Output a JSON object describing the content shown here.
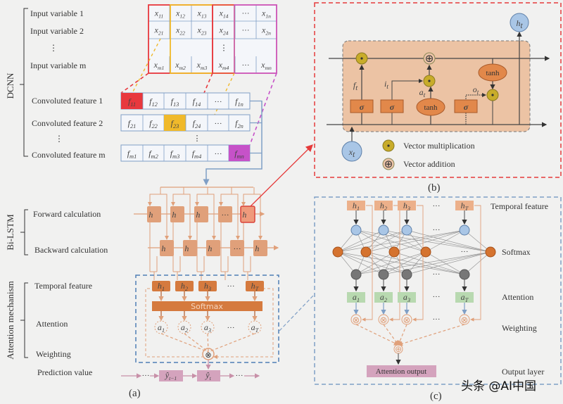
{
  "colors": {
    "red": "#e8383d",
    "yellow": "#f0b92a",
    "magenta": "#c652c8",
    "blue": "#7f9fc6",
    "orange_box": "#e9a87c",
    "orange_dark": "#d57a3e",
    "pink": "#d4a3bd",
    "green": "#b8d9b0",
    "bg": "#f1f1f0"
  },
  "dcnn": {
    "section_label": "DCNN",
    "input_labels": [
      "Input variable 1",
      "Input variable 2",
      "⋮",
      "Input variable m"
    ],
    "input_matrix": [
      [
        [
          "x",
          "11"
        ],
        [
          "x",
          "12"
        ],
        [
          "x",
          "13"
        ],
        [
          "x",
          "14"
        ],
        [
          "···",
          ""
        ],
        [
          "x",
          "1n"
        ]
      ],
      [
        [
          "x",
          "21"
        ],
        [
          "x",
          "22"
        ],
        [
          "x",
          "23"
        ],
        [
          "x",
          "24"
        ],
        [
          "···",
          ""
        ],
        [
          "x",
          "2n"
        ]
      ],
      [
        [
          "",
          "",
          ""
        ],
        [
          "",
          ""
        ],
        [
          "",
          ""
        ],
        [
          "⋮",
          ""
        ],
        [
          "",
          ""
        ],
        [
          "",
          ""
        ]
      ],
      [
        [
          "x",
          "m1"
        ],
        [
          "x",
          "m2"
        ],
        [
          "x",
          "m3"
        ],
        [
          "x",
          "m4"
        ],
        [
          "···",
          ""
        ],
        [
          "x",
          "mn"
        ]
      ]
    ],
    "conv_labels": [
      "Convoluted feature 1",
      "Convoluted feature 2",
      "⋮",
      "Convoluted feature m"
    ],
    "conv_matrix": [
      [
        [
          "f",
          "11"
        ],
        [
          "f",
          "12"
        ],
        [
          "f",
          "13"
        ],
        [
          "f",
          "14"
        ],
        [
          "···",
          ""
        ],
        [
          "f",
          "1n"
        ]
      ],
      [
        [
          "f",
          "21"
        ],
        [
          "f",
          "22"
        ],
        [
          "f",
          "23"
        ],
        [
          "f",
          "24"
        ],
        [
          "···",
          ""
        ],
        [
          "f",
          "2n"
        ]
      ],
      [
        [
          "f",
          "m1"
        ],
        [
          "f",
          "m2"
        ],
        [
          "f",
          "m3"
        ],
        [
          "f",
          "m4"
        ],
        [
          "···",
          ""
        ],
        [
          "f",
          "mn"
        ]
      ]
    ],
    "conv_dots": "⋮"
  },
  "bilstm": {
    "section_label": "Bi-LSTM",
    "forward_label": "Forward calculation",
    "backward_label": "Backward calculation",
    "forward_cells": [
      "h⃗",
      "h⃗",
      "h⃗",
      "···",
      "h⃗"
    ],
    "backward_cells": [
      "h⃖",
      "h⃖",
      "h⃖",
      "···",
      "h⃖"
    ]
  },
  "attention": {
    "section_label": "Attention mechanism",
    "temporal_label": "Temporal feature",
    "attention_label": "Attention",
    "weighting_label": "Weighting",
    "prediction_label": "Prediction value",
    "h": [
      [
        "h",
        "1"
      ],
      [
        "h",
        "2"
      ],
      [
        "h",
        "3"
      ],
      [
        "···",
        ""
      ],
      [
        "h",
        "T"
      ]
    ],
    "softmax": "Softmax",
    "a": [
      [
        "a",
        "1"
      ],
      [
        "a",
        "2"
      ],
      [
        "a",
        "3"
      ],
      [
        "···",
        ""
      ],
      [
        "a",
        "T"
      ]
    ],
    "predictions": [
      [
        "···",
        ""
      ],
      [
        "ŷ",
        "t−1"
      ],
      [
        "ŷ",
        "t"
      ],
      [
        "···",
        ""
      ]
    ],
    "weight_op": "⊗"
  },
  "lstm_cell": {
    "gates": {
      "f": [
        "f",
        "t"
      ],
      "i": [
        "i",
        "t"
      ],
      "a": [
        "a",
        "t"
      ],
      "o": [
        "o",
        "t"
      ]
    },
    "sigma": "σ",
    "tanh": "tanh",
    "input": [
      "x",
      "t"
    ],
    "output": [
      "h",
      "t"
    ],
    "mult": "⊙",
    "add": "⊕",
    "legend": [
      {
        "symbol": "⊙",
        "label": "Vector multiplication"
      },
      {
        "symbol": "⊕",
        "label": "Vector addition"
      }
    ]
  },
  "attention_detail": {
    "h": [
      [
        "h",
        "1"
      ],
      [
        "h",
        "2"
      ],
      [
        "h",
        "3"
      ],
      [
        "···",
        ""
      ],
      [
        "h",
        "T"
      ]
    ],
    "a": [
      [
        "a",
        "1"
      ],
      [
        "a",
        "2"
      ],
      [
        "a",
        "3"
      ],
      [
        "···",
        ""
      ],
      [
        "a",
        "T"
      ]
    ],
    "dots": "···",
    "layer_labels": [
      "Temporal feature",
      "Softmax",
      "Attention",
      "Weighting",
      "Output layer"
    ],
    "output_box": "Attention output"
  },
  "panels": {
    "a": "(a)",
    "b": "(b)",
    "c": "(c)"
  },
  "watermark": "头条 @AI中国"
}
